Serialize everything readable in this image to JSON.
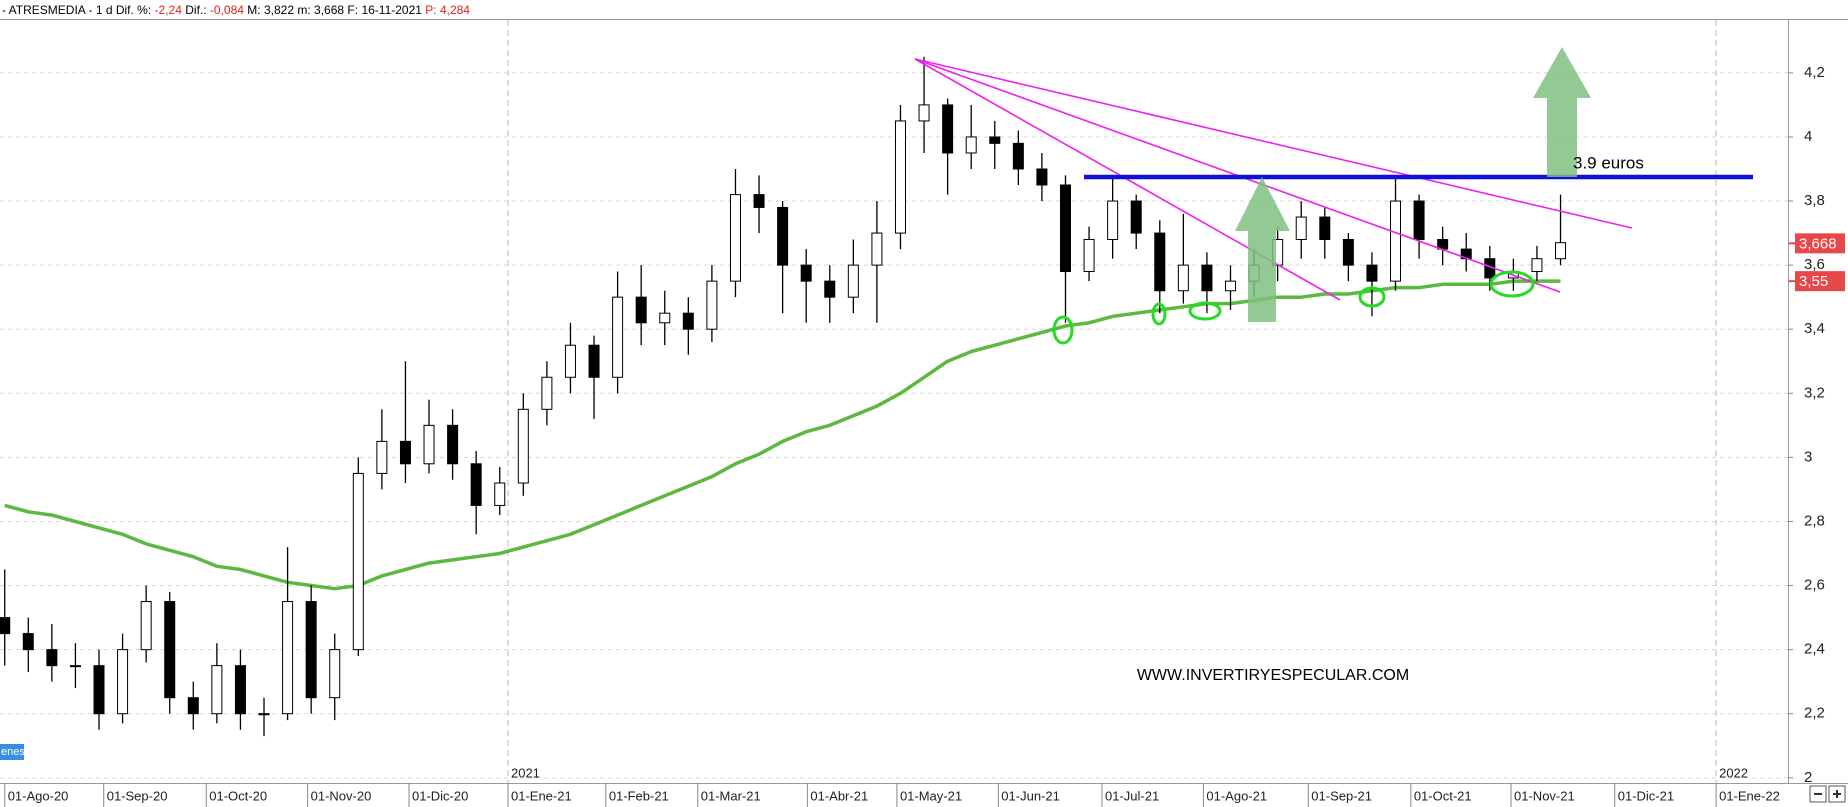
{
  "chart_data": {
    "type": "candlestick",
    "header": {
      "symbol": "- ATRESMEDIA -",
      "period": "1 d",
      "dif_pct_label": "Dif. %:",
      "dif_pct": "-2,24",
      "dif_label": "Dif.:",
      "dif": "-0,084",
      "max_label": "M:",
      "max": "3,822",
      "min_label": "m:",
      "min": "3,668",
      "date_label": "F:",
      "date": "16-11-2021",
      "p": "P: 4,284"
    },
    "annotations": {
      "level_label": "3.9 euros",
      "website": "WWW.INVERTIRYESPECULAR.COM",
      "tag": "enes"
    },
    "x": [
      0,
      5,
      10,
      15,
      20,
      25,
      30,
      35,
      40,
      45,
      50,
      55,
      60,
      65,
      70,
      75,
      80,
      85,
      90,
      95,
      100,
      105,
      110,
      115,
      120,
      125,
      130,
      135,
      140,
      145,
      150,
      155,
      160,
      165,
      170,
      175,
      180,
      185,
      190,
      195,
      200,
      205,
      210,
      215,
      220,
      225,
      230,
      235,
      240,
      245,
      250,
      255,
      260,
      265,
      270,
      275,
      280,
      285,
      290,
      295,
      300,
      305,
      310,
      315,
      320,
      325,
      330
    ],
    "open": [
      2.5,
      2.45,
      2.4,
      2.35,
      2.35,
      2.2,
      2.4,
      2.55,
      2.25,
      2.2,
      2.35,
      2.2,
      2.2,
      2.55,
      2.25,
      2.4,
      2.95,
      3.05,
      2.98,
      3.1,
      2.98,
      2.85,
      2.92,
      3.15,
      3.25,
      3.35,
      3.25,
      3.5,
      3.42,
      3.45,
      3.4,
      3.55,
      3.82,
      3.78,
      3.6,
      3.55,
      3.5,
      3.6,
      3.7,
      4.05,
      4.1,
      3.95,
      4.0,
      3.98,
      3.9,
      3.85,
      3.58,
      3.68,
      3.8,
      3.7,
      3.52,
      3.6,
      3.52,
      3.55,
      3.6,
      3.68,
      3.75,
      3.68,
      3.6,
      3.55,
      3.8,
      3.68,
      3.65,
      3.62,
      3.56,
      3.58,
      3.62
    ],
    "high": [
      2.65,
      2.5,
      2.48,
      2.42,
      2.4,
      2.45,
      2.6,
      2.58,
      2.3,
      2.42,
      2.4,
      2.25,
      2.72,
      2.6,
      2.45,
      3.0,
      3.15,
      3.3,
      3.18,
      3.15,
      3.02,
      2.97,
      3.2,
      3.3,
      3.42,
      3.38,
      3.58,
      3.6,
      3.52,
      3.5,
      3.6,
      3.9,
      3.88,
      3.8,
      3.65,
      3.6,
      3.68,
      3.8,
      4.1,
      4.25,
      4.12,
      4.1,
      4.05,
      4.02,
      3.95,
      3.88,
      3.72,
      3.88,
      3.82,
      3.74,
      3.76,
      3.64,
      3.6,
      3.65,
      3.72,
      3.8,
      3.78,
      3.7,
      3.64,
      3.88,
      3.82,
      3.72,
      3.7,
      3.66,
      3.62,
      3.66,
      3.82
    ],
    "low": [
      2.35,
      2.33,
      2.3,
      2.28,
      2.15,
      2.17,
      2.36,
      2.2,
      2.15,
      2.17,
      2.15,
      2.13,
      2.18,
      2.2,
      2.18,
      2.38,
      2.9,
      2.92,
      2.95,
      2.93,
      2.76,
      2.82,
      2.88,
      3.1,
      3.2,
      3.12,
      3.2,
      3.35,
      3.35,
      3.32,
      3.36,
      3.5,
      3.7,
      3.45,
      3.42,
      3.42,
      3.45,
      3.42,
      3.65,
      3.95,
      3.82,
      3.9,
      3.9,
      3.85,
      3.8,
      3.42,
      3.55,
      3.62,
      3.65,
      3.45,
      3.48,
      3.45,
      3.46,
      3.5,
      3.55,
      3.62,
      3.62,
      3.55,
      3.44,
      3.52,
      3.62,
      3.6,
      3.58,
      3.52,
      3.52,
      3.55,
      3.6
    ],
    "close": [
      2.45,
      2.4,
      2.35,
      2.35,
      2.2,
      2.4,
      2.55,
      2.25,
      2.2,
      2.35,
      2.2,
      2.2,
      2.55,
      2.25,
      2.4,
      2.95,
      3.05,
      2.98,
      3.1,
      2.98,
      2.85,
      2.92,
      3.15,
      3.25,
      3.35,
      3.25,
      3.5,
      3.42,
      3.45,
      3.4,
      3.55,
      3.82,
      3.78,
      3.6,
      3.55,
      3.5,
      3.6,
      3.7,
      4.05,
      4.1,
      3.95,
      4.0,
      3.98,
      3.9,
      3.85,
      3.58,
      3.68,
      3.8,
      3.7,
      3.52,
      3.6,
      3.52,
      3.55,
      3.6,
      3.68,
      3.75,
      3.68,
      3.6,
      3.55,
      3.8,
      3.68,
      3.65,
      3.62,
      3.56,
      3.58,
      3.62,
      3.67
    ],
    "moving_average": {
      "color": "#5cb83f",
      "values": [
        2.85,
        2.83,
        2.82,
        2.8,
        2.78,
        2.76,
        2.73,
        2.71,
        2.69,
        2.66,
        2.65,
        2.63,
        2.61,
        2.6,
        2.59,
        2.6,
        2.63,
        2.65,
        2.67,
        2.68,
        2.69,
        2.7,
        2.72,
        2.74,
        2.76,
        2.79,
        2.82,
        2.85,
        2.88,
        2.91,
        2.94,
        2.98,
        3.01,
        3.05,
        3.08,
        3.1,
        3.13,
        3.16,
        3.2,
        3.25,
        3.3,
        3.33,
        3.35,
        3.37,
        3.39,
        3.41,
        3.42,
        3.44,
        3.45,
        3.46,
        3.47,
        3.48,
        3.48,
        3.49,
        3.5,
        3.5,
        3.51,
        3.51,
        3.52,
        3.53,
        3.53,
        3.54,
        3.54,
        3.54,
        3.55,
        3.55,
        3.55
      ]
    },
    "xlim": [
      -1,
      378.25
    ],
    "ylim": [
      1.99,
      4.365
    ],
    "yticks": [
      2,
      {
        "value": 2.2,
        "label": "2,2"
      },
      {
        "value": 2.4,
        "label": "2,4"
      },
      {
        "value": 2.6,
        "label": "2,6"
      },
      {
        "value": 2.8,
        "label": "2,8"
      },
      3,
      {
        "value": 3.2,
        "label": "3,2"
      },
      {
        "value": 3.4,
        "label": "3,4"
      },
      {
        "value": 3.6,
        "label": "3,6"
      },
      {
        "value": 3.8,
        "label": "3,8"
      },
      4,
      {
        "value": 4.2,
        "label": "4,2"
      }
    ],
    "xticks": [
      {
        "value": 0,
        "label": "01-Ago-20"
      },
      {
        "value": 21,
        "label": "01-Sep-20"
      },
      {
        "value": 42.75,
        "label": "01-Oct-20"
      },
      {
        "value": 64.25,
        "label": "01-Nov-20"
      },
      {
        "value": 85.75,
        "label": "01-Dic-20"
      },
      {
        "value": 106.75,
        "label": "01-Ene-21"
      },
      {
        "value": 127.5,
        "label": "01-Feb-21"
      },
      {
        "value": 147,
        "label": "01-Mar-21"
      },
      {
        "value": 170.25,
        "label": "01-Abr-21"
      },
      {
        "value": 189.25,
        "label": "01-May-21"
      },
      {
        "value": 210.75,
        "label": "01-Jun-21"
      },
      {
        "value": 232.75,
        "label": "01-Jul-21"
      },
      {
        "value": 254.25,
        "label": "01-Ago-21"
      },
      {
        "value": 276.5,
        "label": "01-Sep-21"
      },
      {
        "value": 298.25,
        "label": "01-Oct-21"
      },
      {
        "value": 319.5,
        "label": "01-Nov-21"
      },
      {
        "value": 341.5,
        "label": "01-Dic-21"
      },
      {
        "value": 363,
        "label": "01-Ene-22"
      }
    ],
    "year_markers": [
      {
        "value": 106.75,
        "label": "2021"
      },
      {
        "value": 363,
        "label": "2022"
      }
    ],
    "price_tags": [
      {
        "value": 3.668,
        "label": "3,668"
      },
      {
        "value": 3.55,
        "label": "3,55"
      }
    ],
    "tag_color": "#e8474a",
    "grid": true
  }
}
